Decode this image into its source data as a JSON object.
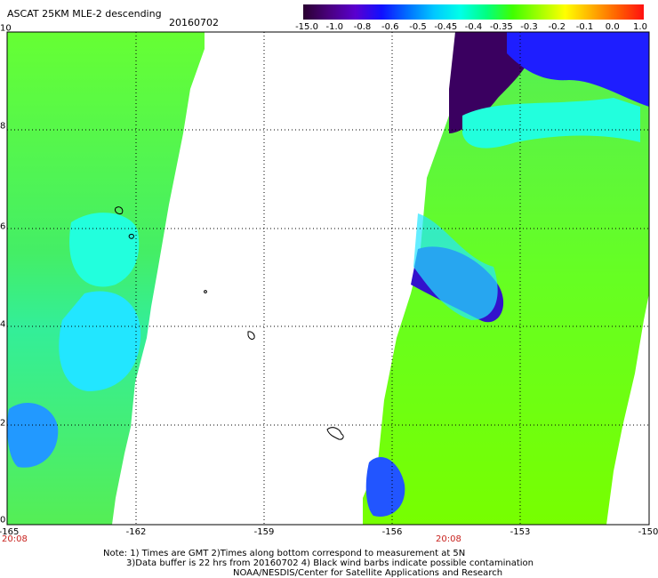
{
  "header": {
    "title": "ASCAT 25KM MLE-2 descending",
    "date": "20160702"
  },
  "colorbar": {
    "labels": [
      "-15.0",
      "-1.0",
      "-0.8",
      "-0.6",
      "-0.5",
      "-0.45",
      "-0.4",
      "-0.35",
      "-0.3",
      "-0.2",
      "-0.1",
      "0.0",
      "1.0"
    ],
    "colors": [
      "#2a0030",
      "#4a0080",
      "#5a00d0",
      "#1010ff",
      "#0070ff",
      "#00c8ff",
      "#00ffe8",
      "#00ff80",
      "#40ff00",
      "#a0ff00",
      "#ffff00",
      "#ffb000",
      "#ff6000",
      "#ff1010"
    ]
  },
  "axes": {
    "x_ticks": [
      "-165",
      "-162",
      "-159",
      "-156",
      "-153",
      "-150"
    ],
    "y_ticks": [
      "10",
      "8",
      "6",
      "4",
      "2",
      "0"
    ],
    "pass_times": [
      {
        "label": "20:08",
        "pos": "left"
      },
      {
        "label": "20:08",
        "pos": "center"
      }
    ]
  },
  "notes": {
    "line1": "Note: 1) Times are GMT 2)Times along bottom correspond to measurement at 5N",
    "line2": "3)Data buffer is 22 hrs from 20160702 4) Black wind barbs indicate possible contamination",
    "line3": "NOAA/NESDIS/Center for Satellite Applications and Research"
  }
}
